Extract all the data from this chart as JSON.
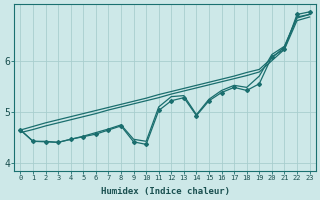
{
  "xlabel": "Humidex (Indice chaleur)",
  "bg_color": "#cde8e8",
  "grid_color": "#a8cece",
  "line_color": "#1a6e6e",
  "x_values": [
    0,
    1,
    2,
    3,
    4,
    5,
    6,
    7,
    8,
    9,
    10,
    11,
    12,
    13,
    14,
    15,
    16,
    17,
    18,
    19,
    20,
    21,
    22,
    23
  ],
  "jagged_marked": [
    4.65,
    4.43,
    4.42,
    4.41,
    4.47,
    4.52,
    4.57,
    4.65,
    4.73,
    4.42,
    4.37,
    5.03,
    5.22,
    5.28,
    4.93,
    5.22,
    5.38,
    5.48,
    5.42,
    5.55,
    6.08,
    6.22,
    6.9,
    6.95
  ],
  "jagged2": [
    4.65,
    4.43,
    4.43,
    4.41,
    4.47,
    4.53,
    4.6,
    4.67,
    4.75,
    4.47,
    4.43,
    5.1,
    5.3,
    5.32,
    4.95,
    5.25,
    5.42,
    5.52,
    5.48,
    5.7,
    6.12,
    6.28,
    6.85,
    6.9
  ],
  "smooth_upper": [
    4.65,
    4.72,
    4.79,
    4.85,
    4.91,
    4.97,
    5.03,
    5.09,
    5.15,
    5.21,
    5.27,
    5.34,
    5.4,
    5.46,
    5.52,
    5.58,
    5.64,
    5.7,
    5.77,
    5.83,
    6.05,
    6.27,
    6.83,
    6.9
  ],
  "smooth_lower": [
    4.6,
    4.66,
    4.73,
    4.79,
    4.85,
    4.91,
    4.97,
    5.04,
    5.1,
    5.16,
    5.22,
    5.28,
    5.35,
    5.41,
    5.47,
    5.53,
    5.59,
    5.65,
    5.71,
    5.78,
    6.0,
    6.22,
    6.78,
    6.85
  ],
  "ylim": [
    3.85,
    7.1
  ],
  "xlim": [
    -0.5,
    23.5
  ],
  "yticks": [
    4,
    5,
    6
  ],
  "xticks": [
    0,
    1,
    2,
    3,
    4,
    5,
    6,
    7,
    8,
    9,
    10,
    11,
    12,
    13,
    14,
    15,
    16,
    17,
    18,
    19,
    20,
    21,
    22,
    23
  ]
}
